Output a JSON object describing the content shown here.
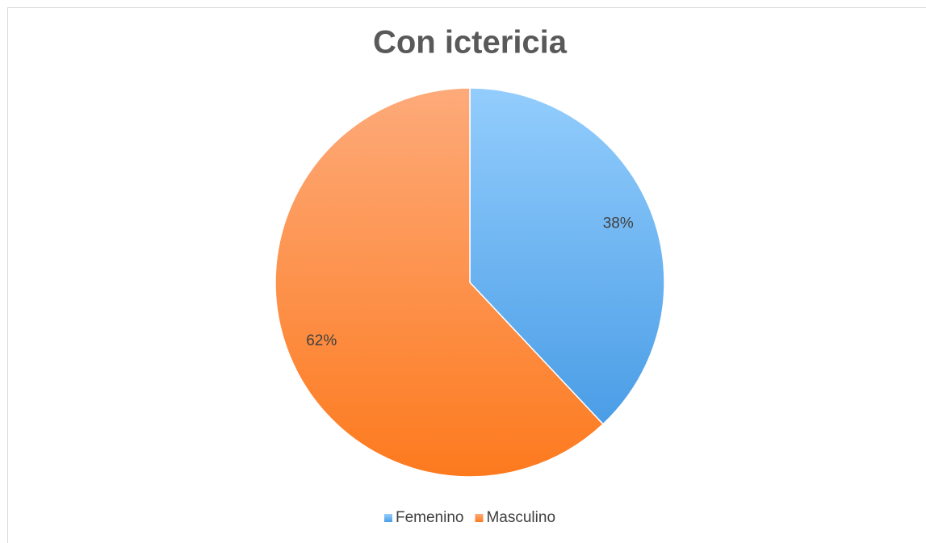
{
  "chart_data": {
    "type": "pie",
    "title": "Con ictericia",
    "categories": [
      "Femenino",
      "Masculino"
    ],
    "values": [
      38,
      62
    ],
    "value_labels": [
      "38%",
      "62%"
    ],
    "gradients": [
      [
        "#93cdfd",
        "#4a9de6"
      ],
      [
        "#fdaa7a",
        "#fd7a1e"
      ]
    ],
    "legend": "bottom"
  }
}
